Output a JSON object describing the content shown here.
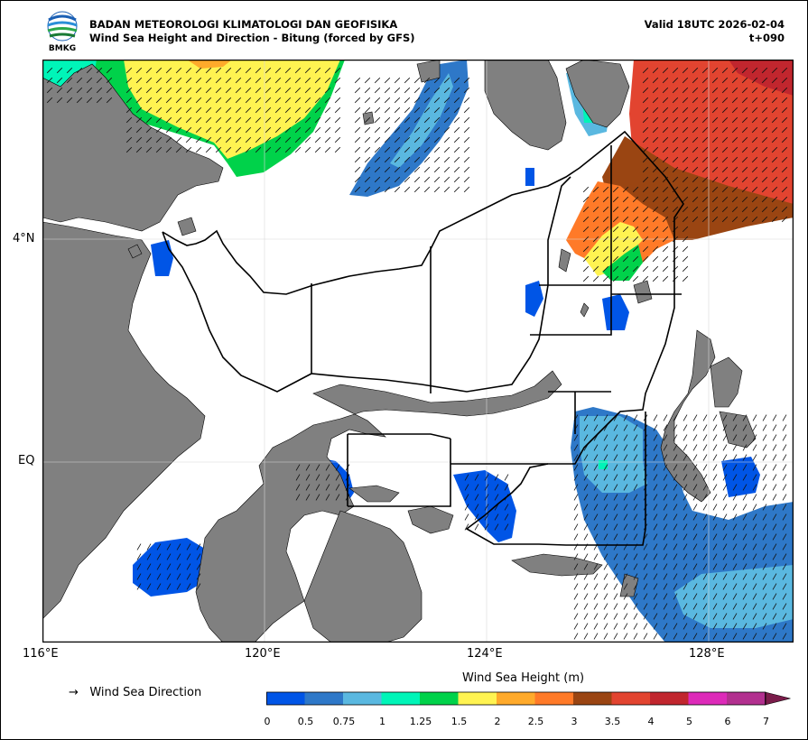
{
  "header": {
    "logo_text": "BMKG",
    "agency": "BADAN METEOROLOGI KLIMATOLOGI DAN GEOFISIKA",
    "title": "Wind Sea Height and Direction - Bitung (forced by GFS)",
    "valid": "Valid 18UTC 2026-02-04",
    "step": "t+090"
  },
  "axes": {
    "lat_labels": [
      "4°N",
      "EQ"
    ],
    "lon_labels": [
      "116°E",
      "120°E",
      "124°E",
      "128°E"
    ]
  },
  "legend": {
    "arrow_glyph": "→",
    "arrow_label": "Wind Sea Direction",
    "colorbar_title": "Wind Sea Height (m)",
    "ticks": [
      "0",
      "0.5",
      "0.75",
      "1",
      "1.25",
      "1.5",
      "2",
      "2.5",
      "3",
      "3.5",
      "4",
      "5",
      "6",
      "7"
    ],
    "colors": [
      "#0055e6",
      "#2e78c8",
      "#5ab8e0",
      "#00f5b8",
      "#00d24a",
      "#fff351",
      "#ffaa2b",
      "#ff7a28",
      "#9a4512",
      "#e24430",
      "#c1262e",
      "#dd2ab9",
      "#b2308f",
      "#7a1c4a"
    ]
  },
  "colors": {
    "land": "#808080",
    "sea": "#ffffff",
    "boundary": "#000000"
  }
}
